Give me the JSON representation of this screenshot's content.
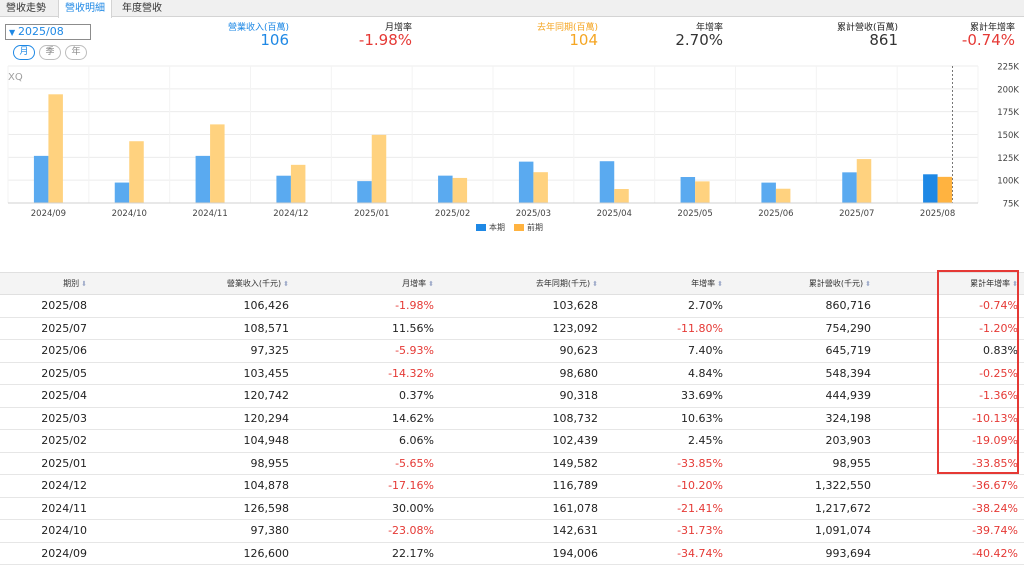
{
  "tabs": [
    {
      "label": "營收走勢",
      "active": false
    },
    {
      "label": "營收明細",
      "active": true
    },
    {
      "label": "年度營收",
      "active": false
    }
  ],
  "date_select": {
    "value": "2025/08"
  },
  "period_buttons": [
    {
      "label": "月",
      "active": true
    },
    {
      "label": "季",
      "active": false
    },
    {
      "label": "年",
      "active": false
    }
  ],
  "summary": [
    {
      "label": "營業收入(百萬)",
      "value": "106",
      "label_color": "#1e88e5",
      "value_color": "#1e88e5"
    },
    {
      "label": "月增率",
      "value": "-1.98%",
      "label_color": "#222222",
      "value_color": "#e53935"
    },
    {
      "label": "去年同期(百萬)",
      "value": "104",
      "label_color": "#f5a623",
      "value_color": "#f5a623"
    },
    {
      "label": "年增率",
      "value": "2.70%",
      "label_color": "#222222",
      "value_color": "#333333"
    },
    {
      "label": "累計營收(百萬)",
      "value": "861",
      "label_color": "#222222",
      "value_color": "#333333"
    },
    {
      "label": "累計年增率",
      "value": "-0.74%",
      "label_color": "#222222",
      "value_color": "#e53935"
    }
  ],
  "watermark": "XQ",
  "colors": {
    "current": "#5aaaf0",
    "current_selected": "#1e88e5",
    "previous": "#ffd27f",
    "previous_selected": "#ffb340",
    "negative": "#e53935"
  },
  "chart_data": {
    "type": "bar",
    "categories": [
      "2024/09",
      "2024/10",
      "2024/11",
      "2024/12",
      "2025/01",
      "2025/02",
      "2025/03",
      "2025/04",
      "2025/05",
      "2025/06",
      "2025/07",
      "2025/08"
    ],
    "series": [
      {
        "name": "本期",
        "values": [
          126600,
          97380,
          126598,
          104878,
          98955,
          104948,
          120294,
          120742,
          103455,
          97325,
          108571,
          106426
        ]
      },
      {
        "name": "前期",
        "values": [
          194006,
          142631,
          161078,
          116789,
          149582,
          102439,
          108732,
          90318,
          98680,
          90623,
          123092,
          103628
        ]
      }
    ],
    "y_ticks": [
      "75K",
      "100K",
      "125K",
      "150K",
      "175K",
      "200K",
      "225K"
    ],
    "ylim": [
      75000,
      225000
    ],
    "selected_category": "2025/08",
    "legend": "bottom-center",
    "grid": true
  },
  "table": {
    "headers": [
      "期別",
      "營業收入(千元)",
      "月增率",
      "去年同期(千元)",
      "年增率",
      "累計營收(千元)",
      "累計年增率"
    ],
    "sort_marks": [
      "⬇",
      "⬍",
      "⬍",
      "⬍",
      "⬍",
      "⬍",
      "⬍"
    ],
    "rows": [
      [
        "2025/08",
        "106,426",
        "-1.98%",
        "103,628",
        "2.70%",
        "860,716",
        "-0.74%"
      ],
      [
        "2025/07",
        "108,571",
        "11.56%",
        "123,092",
        "-11.80%",
        "754,290",
        "-1.20%"
      ],
      [
        "2025/06",
        "97,325",
        "-5.93%",
        "90,623",
        "7.40%",
        "645,719",
        "0.83%"
      ],
      [
        "2025/05",
        "103,455",
        "-14.32%",
        "98,680",
        "4.84%",
        "548,394",
        "-0.25%"
      ],
      [
        "2025/04",
        "120,742",
        "0.37%",
        "90,318",
        "33.69%",
        "444,939",
        "-1.36%"
      ],
      [
        "2025/03",
        "120,294",
        "14.62%",
        "108,732",
        "10.63%",
        "324,198",
        "-10.13%"
      ],
      [
        "2025/02",
        "104,948",
        "6.06%",
        "102,439",
        "2.45%",
        "203,903",
        "-19.09%"
      ],
      [
        "2025/01",
        "98,955",
        "-5.65%",
        "149,582",
        "-33.85%",
        "98,955",
        "-33.85%"
      ],
      [
        "2024/12",
        "104,878",
        "-17.16%",
        "116,789",
        "-10.20%",
        "1,322,550",
        "-36.67%"
      ],
      [
        "2024/11",
        "126,598",
        "30.00%",
        "161,078",
        "-21.41%",
        "1,217,672",
        "-38.24%"
      ],
      [
        "2024/10",
        "97,380",
        "-23.08%",
        "142,631",
        "-31.73%",
        "1,091,074",
        "-39.74%"
      ],
      [
        "2024/09",
        "126,600",
        "22.17%",
        "194,006",
        "-34.74%",
        "993,694",
        "-40.42%"
      ]
    ]
  }
}
